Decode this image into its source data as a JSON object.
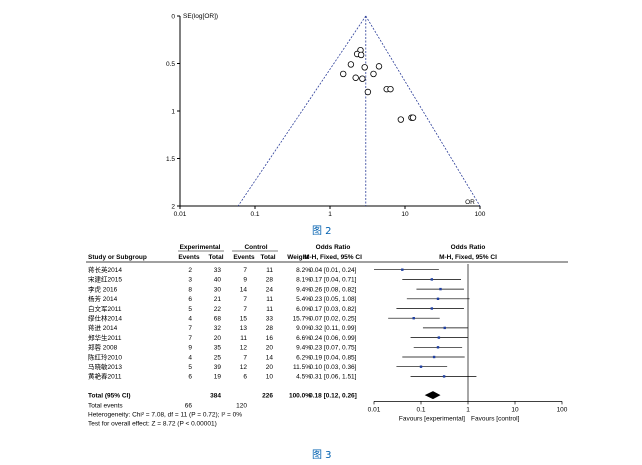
{
  "figure2": {
    "caption": "图 2",
    "y_axis_label": "SE(log[OR])",
    "x_axis_label": "OR",
    "chart_data": {
      "type": "scatter",
      "title": "",
      "xlabel": "OR",
      "ylabel": "SE(log[OR])",
      "x_scale": "log",
      "xlim": [
        0.01,
        100
      ],
      "ylim": [
        0,
        2
      ],
      "y_inverted": true,
      "x_ticks": [
        "0.01",
        "0.1",
        "1",
        "10",
        "100"
      ],
      "y_ticks": [
        "0",
        "0.5",
        "1",
        "1.5",
        "2"
      ],
      "pooled_or": 3.0,
      "points": [
        {
          "x": 2.55,
          "y": 0.36
        },
        {
          "x": 2.3,
          "y": 0.4
        },
        {
          "x": 2.6,
          "y": 0.41
        },
        {
          "x": 1.9,
          "y": 0.51
        },
        {
          "x": 2.9,
          "y": 0.54
        },
        {
          "x": 4.5,
          "y": 0.53
        },
        {
          "x": 3.8,
          "y": 0.61
        },
        {
          "x": 1.5,
          "y": 0.61
        },
        {
          "x": 2.2,
          "y": 0.65
        },
        {
          "x": 2.7,
          "y": 0.66
        },
        {
          "x": 5.7,
          "y": 0.77
        },
        {
          "x": 6.4,
          "y": 0.77
        },
        {
          "x": 3.2,
          "y": 0.8
        },
        {
          "x": 12.2,
          "y": 1.07
        },
        {
          "x": 12.8,
          "y": 1.07
        },
        {
          "x": 8.8,
          "y": 1.09
        }
      ]
    }
  },
  "figure3": {
    "caption": "图 3",
    "headers": {
      "experimental": "Experimental",
      "control": "Control",
      "odds_ratio_left": "Odds Ratio",
      "odds_ratio_right": "Odds Ratio",
      "study": "Study or Subgroup",
      "events_e": "Events",
      "total_e": "Total",
      "events_c": "Events",
      "total_c": "Total",
      "weight": "Weight",
      "method_left": "M-H, Fixed, 95% CI",
      "method_right": "M-H, Fixed, 95% CI"
    },
    "studies": [
      {
        "name": "蒋长英2014",
        "events_e": "2",
        "total_e": "33",
        "events_c": "7",
        "total_c": "11",
        "weight": "8.2%",
        "ci_text": "0.04 [0.01, 0.24]",
        "or": 0.04,
        "lo": 0.01,
        "hi": 0.24
      },
      {
        "name": "宋建红2015",
        "events_e": "3",
        "total_e": "40",
        "events_c": "9",
        "total_c": "28",
        "weight": "8.1%",
        "ci_text": "0.17 [0.04, 0.71]",
        "or": 0.17,
        "lo": 0.04,
        "hi": 0.71
      },
      {
        "name": "李虎 2016",
        "events_e": "8",
        "total_e": "30",
        "events_c": "14",
        "total_c": "24",
        "weight": "9.4%",
        "ci_text": "0.26 [0.08, 0.82]",
        "or": 0.26,
        "lo": 0.08,
        "hi": 0.82
      },
      {
        "name": "杨芳 2014",
        "events_e": "6",
        "total_e": "21",
        "events_c": "7",
        "total_c": "11",
        "weight": "5.4%",
        "ci_text": "0.23 [0.05, 1.08]",
        "or": 0.23,
        "lo": 0.05,
        "hi": 1.08
      },
      {
        "name": "白文军2011",
        "events_e": "5",
        "total_e": "22",
        "events_c": "7",
        "total_c": "11",
        "weight": "6.0%",
        "ci_text": "0.17 [0.03, 0.82]",
        "or": 0.17,
        "lo": 0.03,
        "hi": 0.82
      },
      {
        "name": "缪仕林2014",
        "events_e": "4",
        "total_e": "68",
        "events_c": "15",
        "total_c": "33",
        "weight": "15.7%",
        "ci_text": "0.07 [0.02, 0.25]",
        "or": 0.07,
        "lo": 0.02,
        "hi": 0.25
      },
      {
        "name": "蒋进 2014",
        "events_e": "7",
        "total_e": "32",
        "events_c": "13",
        "total_c": "28",
        "weight": "9.0%",
        "ci_text": "0.32 [0.11, 0.99]",
        "or": 0.32,
        "lo": 0.11,
        "hi": 0.99
      },
      {
        "name": "郑华生2011",
        "events_e": "7",
        "total_e": "20",
        "events_c": "11",
        "total_c": "16",
        "weight": "6.6%",
        "ci_text": "0.24 [0.06, 0.99]",
        "or": 0.24,
        "lo": 0.06,
        "hi": 0.99
      },
      {
        "name": "郑蓉 2008",
        "events_e": "9",
        "total_e": "35",
        "events_c": "12",
        "total_c": "20",
        "weight": "9.4%",
        "ci_text": "0.23 [0.07, 0.75]",
        "or": 0.23,
        "lo": 0.07,
        "hi": 0.75
      },
      {
        "name": "陈红玲2010",
        "events_e": "4",
        "total_e": "25",
        "events_c": "7",
        "total_c": "14",
        "weight": "6.2%",
        "ci_text": "0.19 [0.04, 0.85]",
        "or": 0.19,
        "lo": 0.04,
        "hi": 0.85
      },
      {
        "name": "马晓敏2013",
        "events_e": "5",
        "total_e": "39",
        "events_c": "12",
        "total_c": "20",
        "weight": "11.5%",
        "ci_text": "0.10 [0.03, 0.36]",
        "or": 0.1,
        "lo": 0.03,
        "hi": 0.36
      },
      {
        "name": "黄艳春2011",
        "events_e": "6",
        "total_e": "19",
        "events_c": "6",
        "total_c": "10",
        "weight": "4.5%",
        "ci_text": "0.31 [0.06, 1.51]",
        "or": 0.31,
        "lo": 0.06,
        "hi": 1.51
      }
    ],
    "total": {
      "name": "Total (95% CI)",
      "total_e": "384",
      "total_c": "226",
      "weight": "100.0%",
      "ci_text": "0.18 [0.12, 0.26]",
      "or": 0.18,
      "lo": 0.12,
      "hi": 0.26
    },
    "total_events": {
      "label": "Total events",
      "events_e": "66",
      "events_c": "120"
    },
    "heterogeneity": "Heterogeneity: Chi² = 7.08, df = 11 (P = 0.72); I² = 0%",
    "overall_effect": "Test for overall effect: Z = 8.72 (P < 0.00001)",
    "axis_ticks": [
      "0.01",
      "0.1",
      "1",
      "10",
      "100"
    ],
    "favours_left": "Favours [experimental]",
    "favours_right": "Favours [control]",
    "chart_data": {
      "type": "scatter",
      "title": "",
      "xlabel": "",
      "x_scale": "log",
      "xlim": [
        0.01,
        100
      ],
      "categories": [
        "蒋长英2014",
        "宋建红2015",
        "李虎 2016",
        "杨芳 2014",
        "白文军2011",
        "缪仕林2014",
        "蒋进 2014",
        "郑华生2011",
        "郑蓉 2008",
        "陈红玲2010",
        "马晓敏2013",
        "黄艳春2011",
        "Total (95% CI)"
      ],
      "values": [
        0.04,
        0.17,
        0.26,
        0.23,
        0.17,
        0.07,
        0.32,
        0.24,
        0.23,
        0.19,
        0.1,
        0.31,
        0.18
      ]
    }
  }
}
